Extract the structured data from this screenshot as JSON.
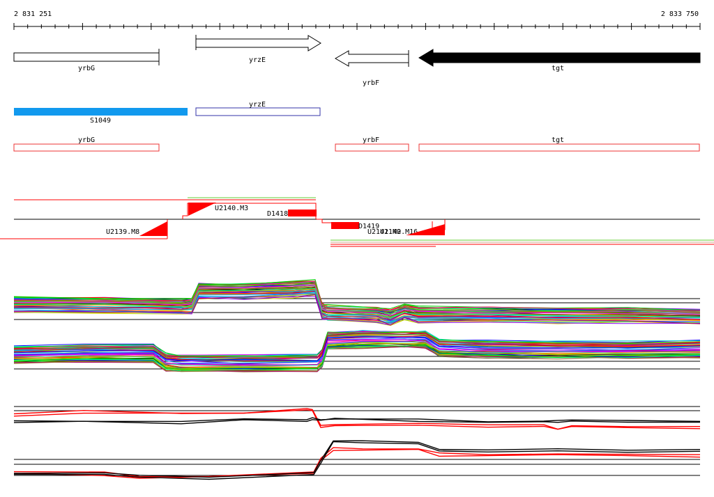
{
  "coords": {
    "start": "2 831 251",
    "end": "2 833 750"
  },
  "genes": [
    {
      "label": "yrbG",
      "strand": "none",
      "fill": "#ffffff"
    },
    {
      "label": "yrzE",
      "strand": "+",
      "fill": "#ffffff"
    },
    {
      "label": "yrbF",
      "strand": "-",
      "fill": "#ffffff"
    },
    {
      "label": "tgt",
      "strand": "-",
      "fill": "#000000"
    }
  ],
  "features": [
    {
      "label": "S1049",
      "color": "#1199ee",
      "style": "filled"
    },
    {
      "label": "yrzE",
      "color": "#3333aa",
      "style": "outline"
    }
  ],
  "annotations": [
    {
      "label": "yrbG",
      "color": "#ee3333"
    },
    {
      "label": "yrbF",
      "color": "#ee3333"
    },
    {
      "label": "tgt",
      "color": "#ee3333"
    }
  ],
  "segments": [
    {
      "label": "U2140.M3"
    },
    {
      "label": "D1418"
    },
    {
      "label": "U2139.M8"
    },
    {
      "label": "D1419"
    },
    {
      "label": "U2141.M2"
    },
    {
      "label": "U2140.M16"
    }
  ],
  "colors": {
    "accent_red": "#ff0000",
    "gene_black": "#000000",
    "feature_blue": "#1199ee"
  }
}
